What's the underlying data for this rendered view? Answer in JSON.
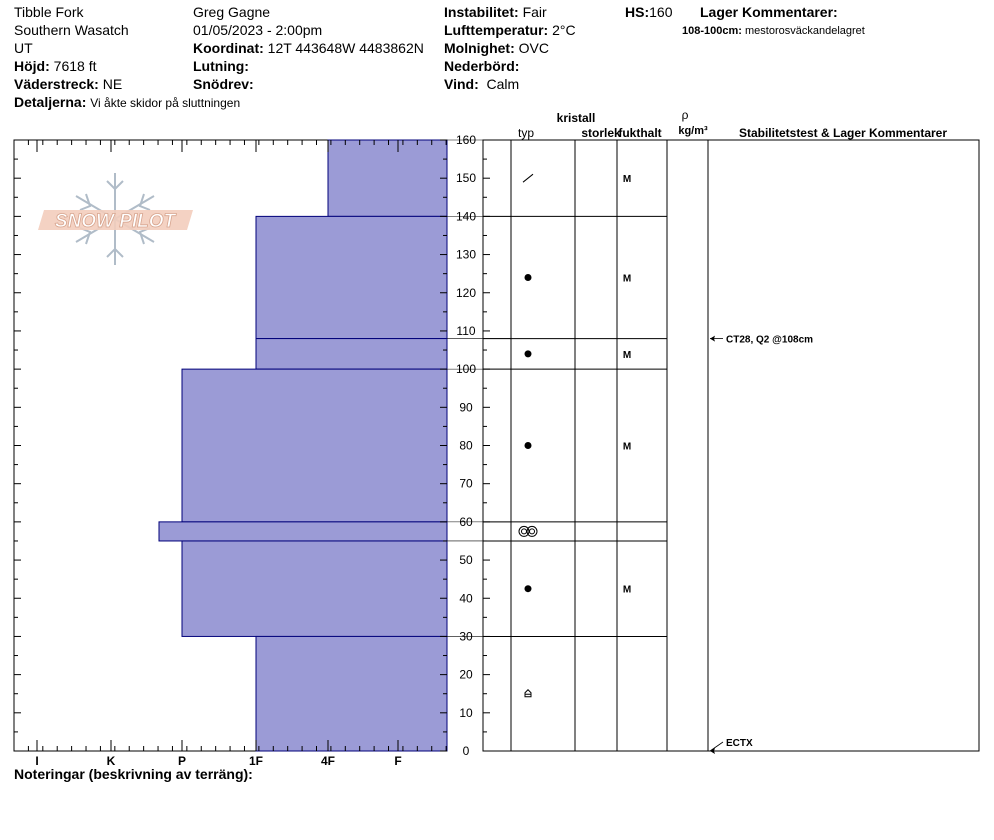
{
  "header": {
    "location": "Tibble Fork",
    "range": "Southern Wasatch",
    "state": "UT",
    "elevation_label": "Höjd:",
    "elevation": "7618 ft",
    "aspect_label": "Väderstreck:",
    "aspect": "NE",
    "details_label": "Detaljerna:",
    "details": "Vi åkte skidor på sluttningen",
    "observer": "Greg Gagne",
    "datetime": "01/05/2023 - 2:00pm",
    "coord_label": "Koordinat:",
    "coord": "12T 443648W 4483862N",
    "slope_label": "Lutning:",
    "slope": "",
    "drift_label": "Snödrev:",
    "drift": "",
    "stability_label": "Instabilitet:",
    "stability": "Fair",
    "airtemp_label": "Lufttemperatur:",
    "airtemp": "2°C",
    "sky_label": "Molnighet:",
    "sky": "OVC",
    "precip_label": "Nederbörd:",
    "precip": "",
    "wind_label": "Vind:",
    "wind": "Calm",
    "hs_label": "HS:",
    "hs": "160",
    "layer_comments_label": "Lager Kommentarer:",
    "layer_comment_range": "108-100cm:",
    "layer_comment_text": "mestorosväckandelagret",
    "notes_label": "Noteringar (beskrivning av terräng):",
    "logo_text": "SNOW PILOT"
  },
  "columns": {
    "type": "typ",
    "crystal": "kristall",
    "size": "storlek",
    "moisture": "fukthalt",
    "rho": "ρ",
    "density_unit": "kg/m³",
    "tests": "Stabilitetstest & Lager Kommentarer"
  },
  "colors": {
    "hardness_fill": "#9b9bd6",
    "hardness_stroke": "#00007a"
  },
  "chart_data": {
    "type": "bar",
    "orientation": "horizontal",
    "description_axis": "hardness",
    "x_tick_labels": [
      "I",
      "K",
      "P",
      "1F",
      "4F",
      "F"
    ],
    "y_tick_labels": [
      "0",
      "10",
      "20",
      "30",
      "40",
      "50",
      "60",
      "70",
      "80",
      "90",
      "100",
      "110",
      "120",
      "130",
      "140",
      "150",
      "160"
    ],
    "ylim": [
      0,
      160
    ],
    "layers": [
      {
        "top": 160,
        "bottom": 140,
        "hardness": "4F",
        "grain": "decomposing",
        "moisture": "M"
      },
      {
        "top": 140,
        "bottom": 108,
        "hardness": "1F",
        "grain": "rounded",
        "moisture": "M"
      },
      {
        "top": 108,
        "bottom": 100,
        "hardness": "1F",
        "grain": "rounded",
        "moisture": "M"
      },
      {
        "top": 100,
        "bottom": 60,
        "hardness": "P",
        "grain": "rounded",
        "moisture": "M"
      },
      {
        "top": 60,
        "bottom": 55,
        "hardness": "K+",
        "grain": "melt-freeze",
        "moisture": ""
      },
      {
        "top": 55,
        "bottom": 30,
        "hardness": "P",
        "grain": "rounded",
        "moisture": "M"
      },
      {
        "top": 30,
        "bottom": 0,
        "hardness": "1F",
        "grain": "depth hoar",
        "moisture": ""
      }
    ],
    "tests": [
      {
        "depth": 108,
        "label": "CT28, Q2 @108cm"
      },
      {
        "depth": 0,
        "label": "ECTX"
      }
    ]
  }
}
